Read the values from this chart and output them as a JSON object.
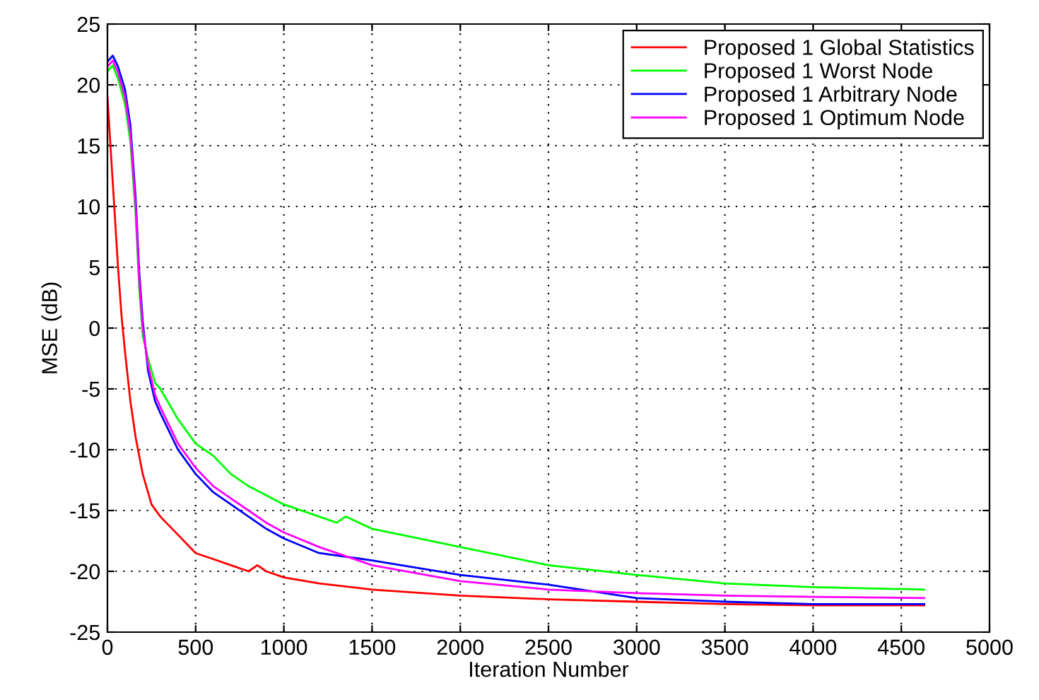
{
  "chart_data": {
    "type": "line",
    "xlabel": "Iteration Number",
    "ylabel": "MSE (dB)",
    "xlim": [
      0,
      5000
    ],
    "xticks": [
      0,
      500,
      1000,
      1500,
      2000,
      2500,
      3000,
      3500,
      4000,
      4500,
      5000
    ],
    "ylim": [
      -25,
      25
    ],
    "yticks": [
      -25,
      -20,
      -15,
      -10,
      -5,
      0,
      5,
      10,
      15,
      20,
      25
    ],
    "grid": true,
    "legend": "top right",
    "line_style": "solid",
    "series": [
      {
        "name": "Proposed 1 Global Statistics",
        "color": "#ff0000",
        "x": [
          0,
          30,
          60,
          80,
          100,
          130,
          160,
          200,
          250,
          300,
          400,
          500,
          600,
          700,
          800,
          850,
          900,
          1000,
          1200,
          1500,
          2000,
          2500,
          3000,
          3500,
          4000,
          4630
        ],
        "values": [
          19,
          12,
          5,
          1,
          -2,
          -6,
          -9,
          -12,
          -14.5,
          -15.5,
          -17,
          -18.5,
          -19,
          -19.5,
          -20,
          -19.5,
          -20,
          -20.5,
          -21,
          -21.5,
          -22,
          -22.3,
          -22.5,
          -22.7,
          -22.8,
          -22.8
        ]
      },
      {
        "name": "Proposed 1 Worst Node",
        "color": "#00ff00",
        "x": [
          0,
          30,
          60,
          100,
          130,
          160,
          180,
          200,
          230,
          270,
          300,
          400,
          500,
          600,
          700,
          800,
          1000,
          1200,
          1300,
          1350,
          1500,
          2000,
          2500,
          3000,
          3500,
          4000,
          4630
        ],
        "values": [
          21.1,
          21.6,
          20.5,
          18.4,
          15.3,
          9.3,
          3.3,
          -0.6,
          -2.5,
          -4.5,
          -5,
          -7.5,
          -9.5,
          -10.5,
          -12,
          -13,
          -14.5,
          -15.5,
          -16,
          -15.5,
          -16.5,
          -18,
          -19.5,
          -20.3,
          -21,
          -21.3,
          -21.5
        ]
      },
      {
        "name": "Proposed 1 Arbitrary Node",
        "color": "#0000ff",
        "x": [
          0,
          30,
          60,
          100,
          130,
          160,
          180,
          200,
          230,
          270,
          300,
          350,
          400,
          500,
          600,
          700,
          800,
          900,
          1000,
          1200,
          1500,
          2000,
          2500,
          3000,
          3500,
          4000,
          4630
        ],
        "values": [
          21.9,
          22.4,
          21.5,
          19.6,
          16.7,
          10.7,
          4.7,
          0.6,
          -3.5,
          -6,
          -7,
          -8.5,
          -10,
          -12,
          -13.5,
          -14.5,
          -15.5,
          -16.5,
          -17.3,
          -18.5,
          -19.1,
          -20.3,
          -21.1,
          -22.2,
          -22.5,
          -22.7,
          -22.7
        ]
      },
      {
        "name": "Proposed 1 Optimum Node",
        "color": "#ff00ff",
        "x": [
          0,
          30,
          60,
          100,
          130,
          160,
          180,
          200,
          230,
          270,
          300,
          350,
          400,
          500,
          600,
          700,
          800,
          900,
          1000,
          1200,
          1500,
          2000,
          2500,
          3000,
          3500,
          4000,
          4630
        ],
        "values": [
          21.5,
          22,
          21,
          19,
          16,
          10,
          4,
          0,
          -3,
          -5.5,
          -6.5,
          -8,
          -9.5,
          -11.5,
          -13,
          -14,
          -15,
          -16,
          -16.8,
          -18,
          -19.5,
          -20.8,
          -21.5,
          -21.8,
          -22,
          -22.1,
          -22.2
        ]
      }
    ]
  }
}
